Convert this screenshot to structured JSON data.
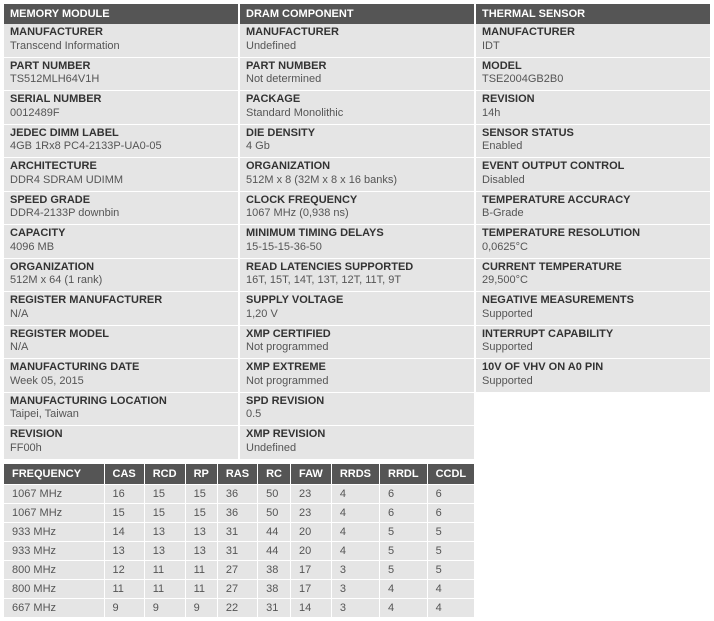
{
  "panels": {
    "memory_module": {
      "title": "MEMORY MODULE",
      "fields": [
        {
          "label": "MANUFACTURER",
          "value": "Transcend Information"
        },
        {
          "label": "PART NUMBER",
          "value": "TS512MLH64V1H"
        },
        {
          "label": "SERIAL NUMBER",
          "value": "0012489F"
        },
        {
          "label": "JEDEC DIMM LABEL",
          "value": "4GB 1Rx8 PC4-2133P-UA0-05"
        },
        {
          "label": "ARCHITECTURE",
          "value": "DDR4 SDRAM UDIMM"
        },
        {
          "label": "SPEED GRADE",
          "value": "DDR4-2133P downbin"
        },
        {
          "label": "CAPACITY",
          "value": "4096 MB"
        },
        {
          "label": "ORGANIZATION",
          "value": "512M x 64 (1 rank)"
        },
        {
          "label": "REGISTER MANUFACTURER",
          "value": "N/A"
        },
        {
          "label": "REGISTER MODEL",
          "value": "N/A"
        },
        {
          "label": "MANUFACTURING DATE",
          "value": "Week 05, 2015"
        },
        {
          "label": "MANUFACTURING LOCATION",
          "value": "Taipei, Taiwan"
        },
        {
          "label": "REVISION",
          "value": "FF00h"
        }
      ]
    },
    "dram_component": {
      "title": "DRAM COMPONENT",
      "fields": [
        {
          "label": "MANUFACTURER",
          "value": "Undefined"
        },
        {
          "label": "PART NUMBER",
          "value": "Not determined"
        },
        {
          "label": "PACKAGE",
          "value": "Standard Monolithic"
        },
        {
          "label": "DIE DENSITY",
          "value": "4 Gb"
        },
        {
          "label": "ORGANIZATION",
          "value": "512M x 8 (32M x 8 x 16 banks)"
        },
        {
          "label": "CLOCK FREQUENCY",
          "value": "1067 MHz (0,938 ns)"
        },
        {
          "label": "MINIMUM TIMING DELAYS",
          "value": "15-15-15-36-50"
        },
        {
          "label": "READ LATENCIES SUPPORTED",
          "value": "16T, 15T, 14T, 13T, 12T, 11T, 9T"
        },
        {
          "label": "SUPPLY VOLTAGE",
          "value": "1,20 V"
        },
        {
          "label": "XMP CERTIFIED",
          "value": "Not programmed"
        },
        {
          "label": "XMP EXTREME",
          "value": "Not programmed"
        },
        {
          "label": "SPD REVISION",
          "value": "0.5"
        },
        {
          "label": "XMP REVISION",
          "value": "Undefined"
        }
      ]
    },
    "thermal_sensor": {
      "title": "THERMAL SENSOR",
      "fields": [
        {
          "label": "MANUFACTURER",
          "value": "IDT"
        },
        {
          "label": "MODEL",
          "value": "TSE2004GB2B0"
        },
        {
          "label": "REVISION",
          "value": "14h"
        },
        {
          "label": "SENSOR STATUS",
          "value": "Enabled"
        },
        {
          "label": "EVENT OUTPUT CONTROL",
          "value": "Disabled"
        },
        {
          "label": "TEMPERATURE ACCURACY",
          "value": "B-Grade"
        },
        {
          "label": "TEMPERATURE RESOLUTION",
          "value": "0,0625°C"
        },
        {
          "label": "CURRENT TEMPERATURE",
          "value": "29,500°C"
        },
        {
          "label": "NEGATIVE MEASUREMENTS",
          "value": "Supported"
        },
        {
          "label": "INTERRUPT CAPABILITY",
          "value": "Supported"
        },
        {
          "label": "10V OF VHV ON A0 PIN",
          "value": "Supported"
        }
      ]
    }
  },
  "timing_table": {
    "columns": [
      "FREQUENCY",
      "CAS",
      "RCD",
      "RP",
      "RAS",
      "RC",
      "FAW",
      "RRDS",
      "RRDL",
      "CCDL"
    ],
    "rows": [
      [
        "1067 MHz",
        "16",
        "15",
        "15",
        "36",
        "50",
        "23",
        "4",
        "6",
        "6"
      ],
      [
        "1067 MHz",
        "15",
        "15",
        "15",
        "36",
        "50",
        "23",
        "4",
        "6",
        "6"
      ],
      [
        "933 MHz",
        "14",
        "13",
        "13",
        "31",
        "44",
        "20",
        "4",
        "5",
        "5"
      ],
      [
        "933 MHz",
        "13",
        "13",
        "13",
        "31",
        "44",
        "20",
        "4",
        "5",
        "5"
      ],
      [
        "800 MHz",
        "12",
        "11",
        "11",
        "27",
        "38",
        "17",
        "3",
        "5",
        "5"
      ],
      [
        "800 MHz",
        "11",
        "11",
        "11",
        "27",
        "38",
        "17",
        "3",
        "4",
        "4"
      ],
      [
        "667 MHz",
        "9",
        "9",
        "9",
        "22",
        "31",
        "14",
        "3",
        "4",
        "4"
      ]
    ]
  },
  "colors": {
    "header_bg": "#555555",
    "header_fg": "#ffffff",
    "field_bg": "#e5e5e5",
    "label_fg": "#333333",
    "value_fg": "#555555",
    "divider": "#ffffff"
  }
}
